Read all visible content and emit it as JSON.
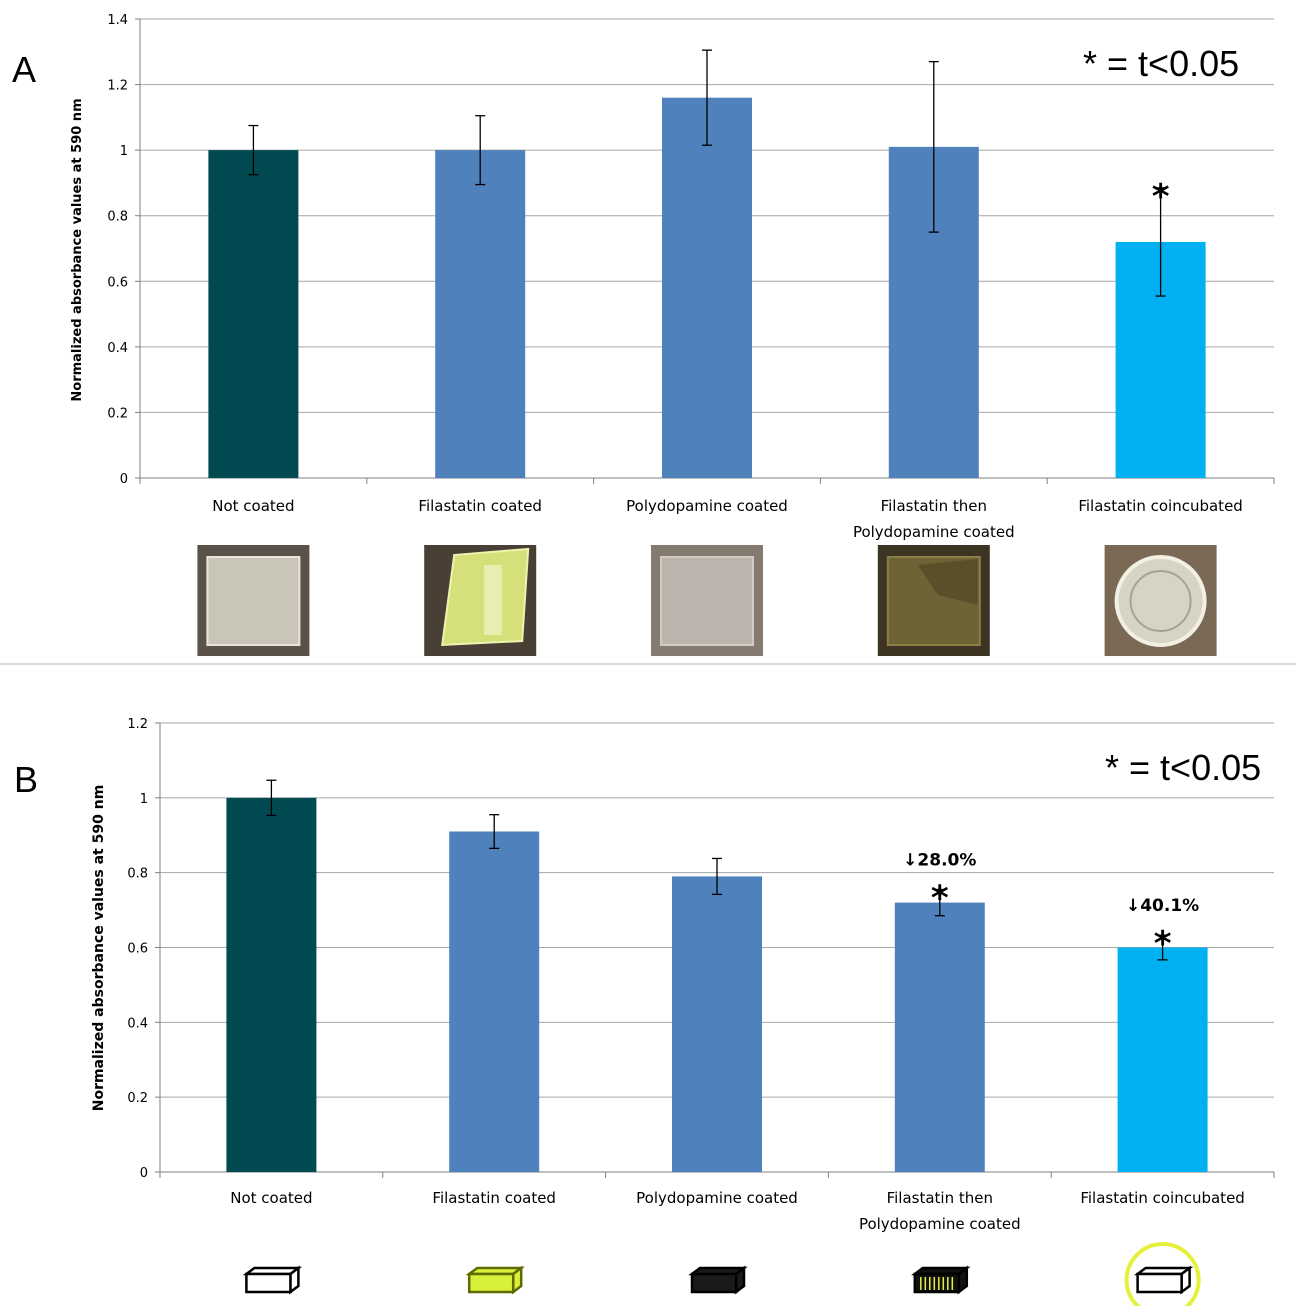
{
  "significance_note": "* = t<0.05",
  "panels": [
    "A",
    "B"
  ],
  "chart_data": [
    {
      "panel": "A",
      "type": "bar",
      "categories": [
        "Not coated",
        "Filastatin coated",
        "Polydopamine coated",
        "Filastatin then Polydopamine coated",
        "Filastatin coincubated"
      ],
      "category_lines": [
        [
          "Not coated"
        ],
        [
          "Filastatin coated"
        ],
        [
          "Polydopamine coated"
        ],
        [
          "Filastatin then",
          "Polydopamine coated"
        ],
        [
          "Filastatin coincubated"
        ]
      ],
      "values": [
        1.0,
        1.0,
        1.16,
        1.01,
        0.72
      ],
      "error": [
        0.075,
        0.105,
        0.145,
        0.26,
        0.165
      ],
      "bar_colors": [
        "#014A51",
        "#4F81BD",
        "#4F81BD",
        "#4F81BD",
        "#00B0F0"
      ],
      "significant": [
        false,
        false,
        false,
        false,
        true
      ],
      "annotations": [
        "",
        "",
        "",
        "",
        ""
      ],
      "significance_mark": "*",
      "ylabel": "Normalized absorbance values at 590 nm",
      "ylim": [
        0,
        1.4
      ],
      "yticks": [
        "0",
        "0.2",
        "0.4",
        "0.6",
        "0.8",
        "1",
        "1.2",
        "1.4"
      ],
      "grid": true,
      "photos": [
        "clear-square-sample-photo",
        "yellow-film-sample-photo",
        "gray-square-sample-photo",
        "olive-square-sample-photo",
        "well-dish-sample-photo"
      ]
    },
    {
      "panel": "B",
      "type": "bar",
      "categories": [
        "Not coated",
        "Filastatin coated",
        "Polydopamine coated",
        "Filastatin then Polydopamine coated",
        "Filastatin coincubated"
      ],
      "category_lines": [
        [
          "Not coated"
        ],
        [
          "Filastatin coated"
        ],
        [
          "Polydopamine coated"
        ],
        [
          "Filastatin then",
          "Polydopamine coated"
        ],
        [
          "Filastatin coincubated"
        ]
      ],
      "values": [
        1.0,
        0.91,
        0.79,
        0.72,
        0.6
      ],
      "error": [
        0.047,
        0.045,
        0.048,
        0.035,
        0.033
      ],
      "bar_colors": [
        "#014A51",
        "#4F81BD",
        "#4F81BD",
        "#4F81BD",
        "#00B0F0"
      ],
      "significant": [
        false,
        false,
        false,
        true,
        true
      ],
      "annotations": [
        "",
        "",
        "",
        "↓28.0%",
        "↓40.1%"
      ],
      "significance_mark": "*",
      "ylabel": "Normalized absorbance values at 590 nm",
      "ylim": [
        0,
        1.2
      ],
      "yticks": [
        "0",
        "0.2",
        "0.4",
        "0.6",
        "0.8",
        "1",
        "1.2"
      ],
      "grid": true,
      "icons": [
        "clear-slide-icon",
        "yellow-slide-icon",
        "black-slide-icon",
        "striped-slide-icon",
        "circled-slide-icon"
      ]
    }
  ]
}
